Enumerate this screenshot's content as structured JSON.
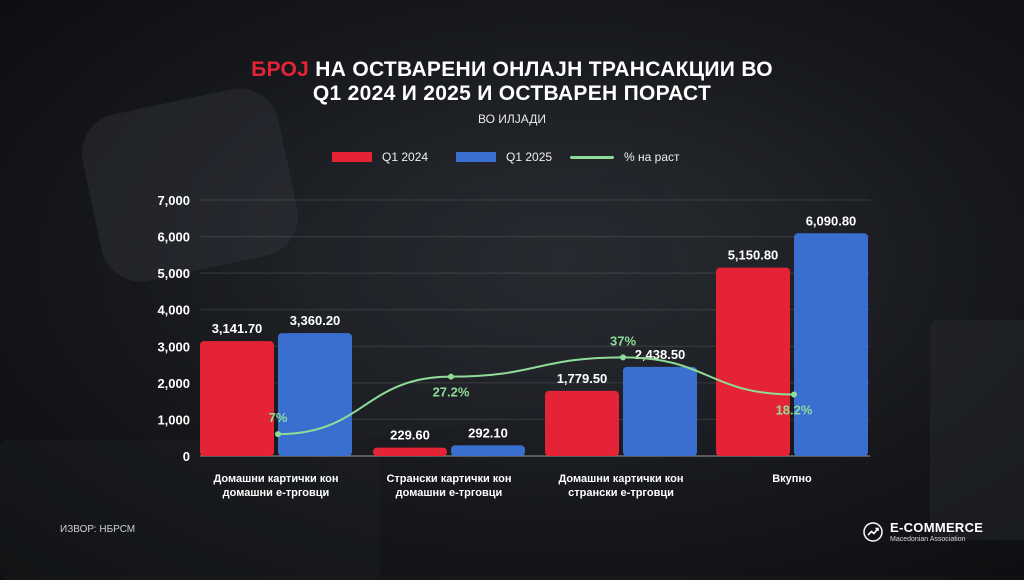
{
  "header": {
    "title_accent": "БРОЈ",
    "title_line1_rest": " НА ОСТВАРЕНИ ОНЛАЈН ТРАНСАКЦИИ ВО",
    "title_line2": "Q1 2024 И 2025 И ОСТВАРЕН ПОРАСТ",
    "subtitle": "ВО ИЛЈАДИ"
  },
  "legend": [
    {
      "label": "Q1 2024",
      "color": "#e52337",
      "kind": "bar"
    },
    {
      "label": "Q1 2025",
      "color": "#3a6fd0",
      "kind": "bar"
    },
    {
      "label": "% на раст",
      "color": "#8fdc98",
      "kind": "line"
    }
  ],
  "chart_data": {
    "type": "bar",
    "categories": [
      [
        "Домашни картички кон",
        "домашни е-трговци"
      ],
      [
        "Странски картички кон",
        "домашни е-трговци"
      ],
      [
        "Домашни картички кон",
        "странски е-трговци"
      ],
      [
        "Вкупно"
      ]
    ],
    "series": [
      {
        "name": "Q1 2024",
        "values": [
          3141.7,
          229.6,
          1779.5,
          5150.8
        ],
        "labels": [
          "3,141.70",
          "229.60",
          "1,779.50",
          "5,150.80"
        ],
        "color": "#e52337"
      },
      {
        "name": "Q1 2025",
        "values": [
          3360.2,
          292.1,
          2438.5,
          6090.8
        ],
        "labels": [
          "3,360.20",
          "292.10",
          "2,438.50",
          "6,090.80"
        ],
        "color": "#3a6fd0"
      }
    ],
    "growth": {
      "name": "% на раст",
      "values": [
        7,
        27.2,
        37,
        18.2
      ],
      "labels": [
        "7%",
        "27.2%",
        "37%",
        "18.2%"
      ],
      "color": "#8fdc98"
    },
    "yticks": [
      "0",
      "1,000",
      "2,000",
      "3,000",
      "4,000",
      "5,000",
      "6,000",
      "7,000"
    ],
    "ylim": [
      0,
      7000
    ],
    "grid": true
  },
  "footer": {
    "source": "ИЗВОР: НБРСМ",
    "logo_name": "E-COMMERCE",
    "logo_sub": "Macedonian Association"
  }
}
